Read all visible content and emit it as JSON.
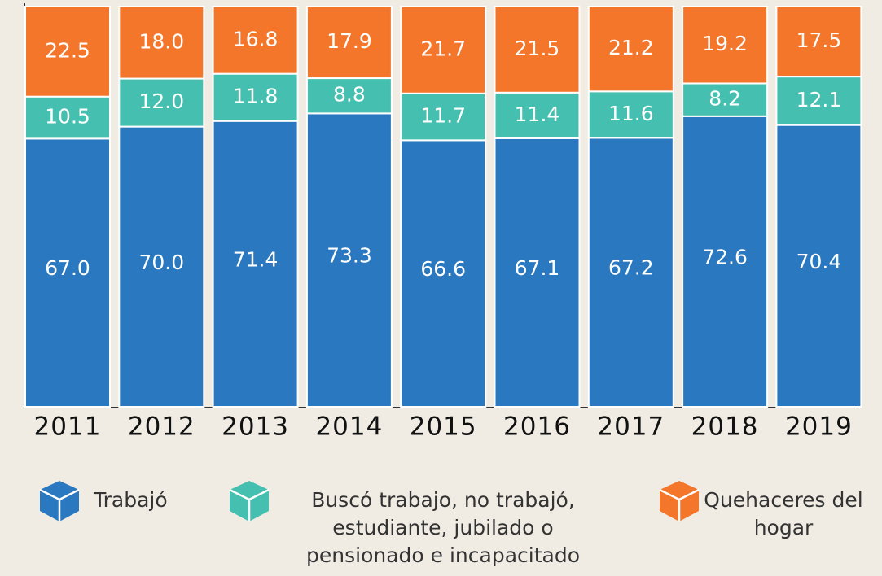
{
  "chart_data": {
    "type": "bar",
    "stacked": true,
    "categories": [
      "2011",
      "2012",
      "2013",
      "2014",
      "2015",
      "2016",
      "2017",
      "2018",
      "2019"
    ],
    "ylim": [
      0,
      100
    ],
    "series": [
      {
        "name": "Trabajó",
        "color": "#2a78bf",
        "values": [
          67,
          70,
          71.4,
          73.3,
          66.6,
          67.1,
          67.2,
          72.6,
          70.4
        ],
        "value_labels": [
          "67.0",
          "70.0",
          "71.4",
          "73.3",
          "66.6",
          "67.1",
          "67.2",
          "72.6",
          "70.4"
        ]
      },
      {
        "name": "Buscó trabajo, no trabajó, estudiante, jubilado o pensionado e incapacitado",
        "color": "#45c0b0",
        "values": [
          10.5,
          12,
          11.8,
          8.8,
          11.7,
          11.4,
          11.6,
          8.2,
          12.1
        ],
        "value_labels": [
          "10.5",
          "12.0",
          "11.8",
          "8.8",
          "11.7",
          "11.4",
          "11.6",
          "8.2",
          "12.1"
        ]
      },
      {
        "name": "Quehaceres del hogar",
        "color": "#f3762b",
        "values": [
          22.5,
          18,
          16.8,
          17.9,
          21.7,
          21.5,
          21.2,
          19.2,
          17.5
        ],
        "value_labels": [
          "22.5",
          "18.0",
          "16.8",
          "17.9",
          "21.7",
          "21.5",
          "21.2",
          "19.2",
          "17.5"
        ]
      }
    ]
  }
}
